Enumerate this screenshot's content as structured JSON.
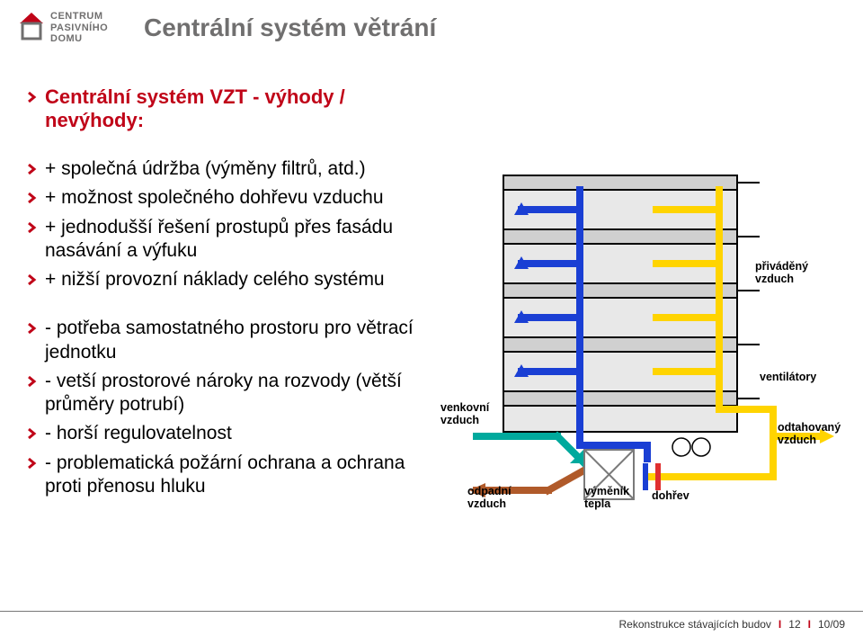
{
  "logo": {
    "line1": "CENTRUM",
    "line2": "PASIVNÍHO",
    "line3": "DOMU",
    "roof_color": "#c00418",
    "wall_color": "#706f6f"
  },
  "title": "Centrální systém větrání",
  "subtitle": "Centrální systém VZT - výhody / nevýhody:",
  "chevron_color": "#c00418",
  "bullets_group1": [
    "+ společná údržba (výměny filtrů, atd.)",
    "+ možnost společného dohřevu vzduchu",
    "+ jednodušší řešení prostupů přes fasádu nasávání a výfuku",
    "+ nižší provozní náklady celého systému"
  ],
  "bullets_group2": [
    "- potřeba samostatného prostoru pro větrací jednotku",
    "- vetší prostorové nároky na rozvody (větší průměry potrubí)",
    "- horší regulovatelnost",
    "- problematická požární ochrana a ochrana proti přenosu hluku"
  ],
  "diagram": {
    "colors": {
      "building_line": "#000000",
      "building_fill": "#e8e8e8",
      "slab_fill": "#d0d0d0",
      "supply_air": "#1a3fd4",
      "exhaust_air": "#ffd400",
      "outdoor_air": "#00a99d",
      "waste_air": "#b05a2a",
      "reheat": "#e03030",
      "exchanger_border": "#7a7a7a"
    },
    "labels": {
      "supply": "přiváděný\nvzduch",
      "fans": "ventilátory",
      "outdoor": "venkovní\nvzduch",
      "exhaust": "odtahovaný\nvzduch",
      "waste": "odpadní\nvzduch",
      "exchanger": "výměník\ntepla",
      "reheat": "dohřev"
    }
  },
  "footer": {
    "text": "Rekonstrukce stávajících budov",
    "page": "12",
    "date": "10/09",
    "sep_color": "#c00418"
  }
}
